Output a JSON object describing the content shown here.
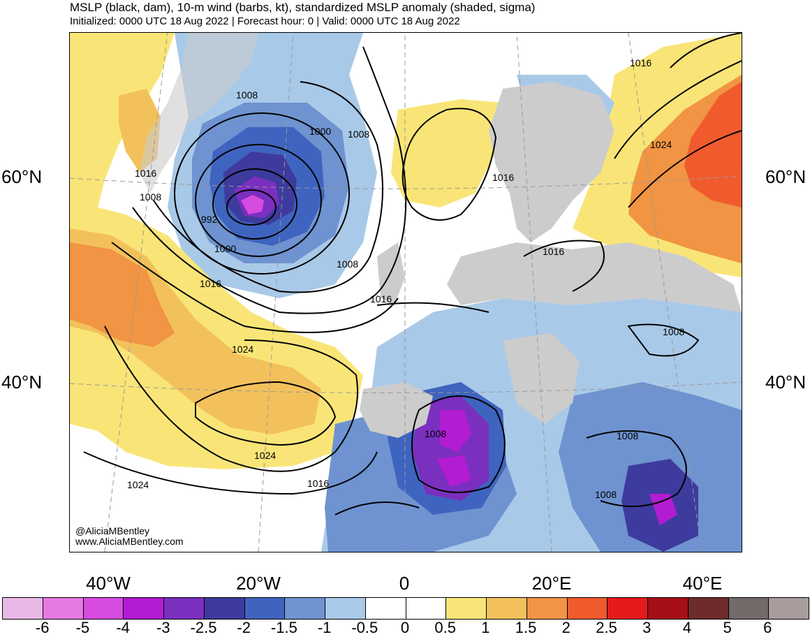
{
  "header": {
    "title": "MSLP (black, dam), 10-m wind (barbs, kt), standardized MSLP anomaly (shaded, sigma)",
    "subtitle": "Initialized: 0000 UTC 18 Aug 2022 | Forecast hour: 0 | Valid: 0000 UTC 18 Aug 2022"
  },
  "map": {
    "lat_labels": [
      "60°N",
      "40°N"
    ],
    "lon_labels": [
      "40°W",
      "20°W",
      "0",
      "20°E",
      "40°E"
    ],
    "contour_labels": [
      "1016",
      "1008",
      "1016",
      "1008",
      "1000",
      "1008",
      "992",
      "1000",
      "1016",
      "1008",
      "1024",
      "1016",
      "1016",
      "1008",
      "1024",
      "1024",
      "1016",
      "1008",
      "1008",
      "1008",
      "1016",
      "1024"
    ],
    "credit_handle": "@AliciaMBentley",
    "credit_url": "www.AliciaMBentley.com"
  },
  "colorbar": {
    "colors": [
      "#e9b8e6",
      "#e67ae4",
      "#d64be0",
      "#b21cd2",
      "#7b2fbf",
      "#3e3b9e",
      "#3f64bf",
      "#6e93d0",
      "#a9c9e8",
      "#ffffff",
      "#ffffff",
      "#f9e577",
      "#f3c15b",
      "#f19443",
      "#f05b2e",
      "#e41a1c",
      "#a50f15",
      "#6e2b2b",
      "#736a6a",
      "#a89c9c"
    ],
    "labels": [
      "-6",
      "-5",
      "-4",
      "-3",
      "-2.5",
      "-2",
      "-1.5",
      "-1",
      "-0.5",
      "0",
      "0.5",
      "1",
      "1.5",
      "2",
      "2.5",
      "3",
      "4",
      "5",
      "6"
    ]
  }
}
